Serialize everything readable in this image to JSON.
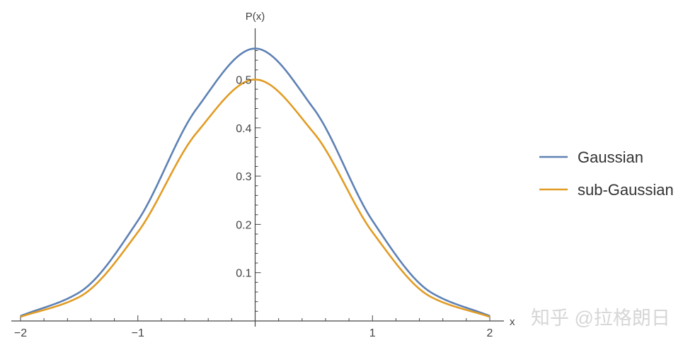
{
  "chart_data": {
    "type": "line",
    "title": "",
    "xlabel": "x",
    "ylabel": "P(x)",
    "xlim": [
      -2,
      2
    ],
    "ylim": [
      0,
      0.58
    ],
    "x_ticks": [
      -2,
      -1,
      1,
      2
    ],
    "x_tick_labels": [
      "−2",
      "−1",
      "1",
      "2"
    ],
    "y_ticks": [
      0.1,
      0.2,
      0.3,
      0.4,
      0.5
    ],
    "y_tick_labels": [
      "0.1",
      "0.2",
      "0.3",
      "0.4",
      "0.5"
    ],
    "series": [
      {
        "name": "Gaussian",
        "color": "#5e81b5",
        "x": [
          -2,
          -1.5,
          -1,
          -0.5,
          0,
          0.5,
          1,
          1.5,
          2
        ],
        "y": [
          0.0103,
          0.059,
          0.2076,
          0.4393,
          0.5642,
          0.4393,
          0.2076,
          0.059,
          0.0103
        ]
      },
      {
        "name": "sub-Gaussian",
        "color": "#e19c24",
        "x": [
          -2,
          -1.5,
          -1,
          -0.5,
          0,
          0.5,
          1,
          1.5,
          2
        ],
        "y": [
          0.0085,
          0.0496,
          0.1839,
          0.3894,
          0.5,
          0.3894,
          0.1839,
          0.0496,
          0.0085
        ]
      }
    ],
    "legend_position": "right",
    "grid": false
  },
  "watermark": "知乎 @拉格朗日"
}
